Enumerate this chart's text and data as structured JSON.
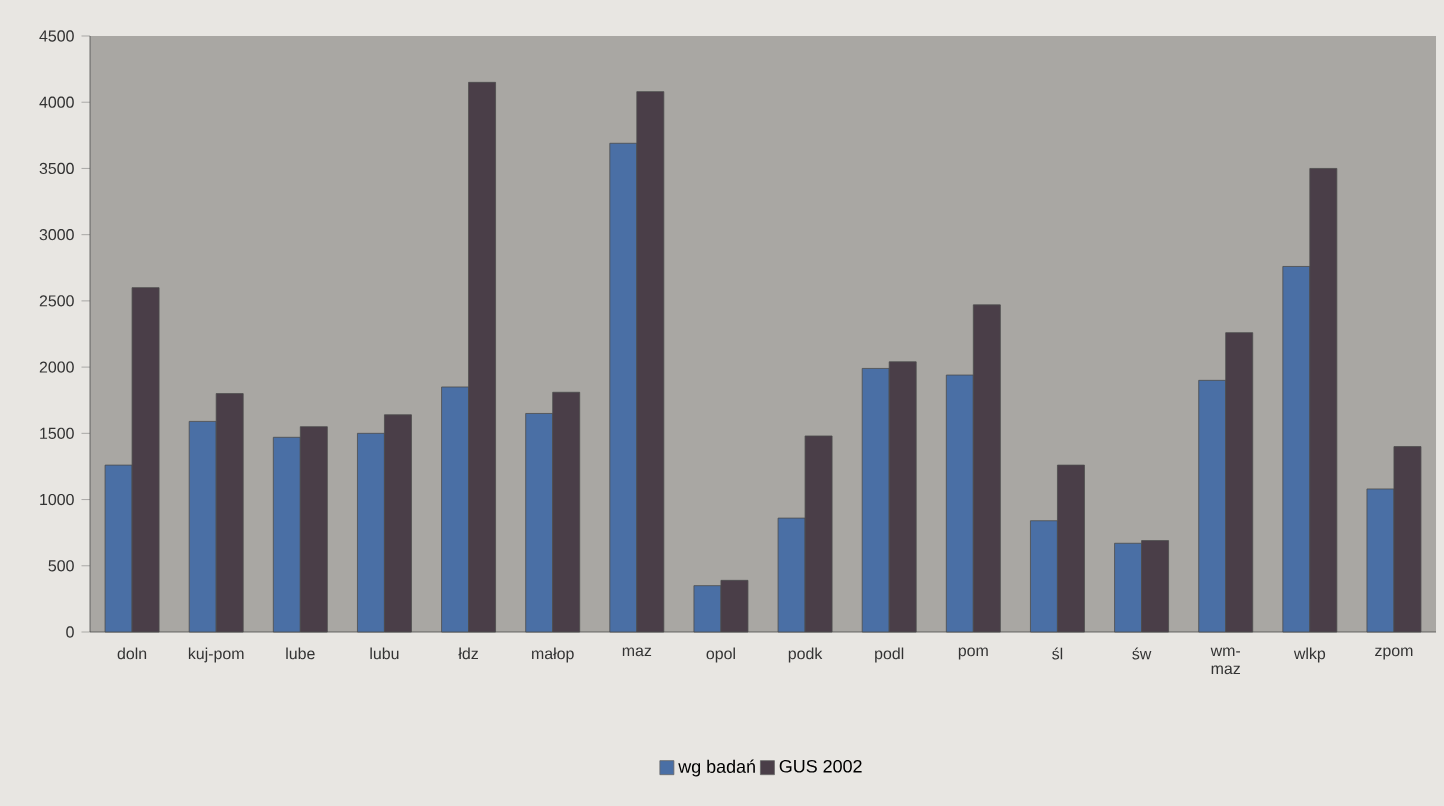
{
  "chart_data": {
    "type": "bar",
    "categories": [
      "doln",
      "kuj-pom",
      "lube",
      "lubu",
      "łdz",
      "małop",
      "maz",
      "opol",
      "podk",
      "podl",
      "pom",
      "śl",
      "św",
      "wm-maz",
      "wlkp",
      "zpom"
    ],
    "series": [
      {
        "name": "wg badań",
        "color": "#4a6fa5",
        "values": [
          1260,
          1590,
          1470,
          1500,
          1850,
          1650,
          3690,
          350,
          860,
          1990,
          1940,
          840,
          670,
          1900,
          2760,
          1080
        ]
      },
      {
        "name": "GUS 2002",
        "color": "#4a3e48",
        "values": [
          2600,
          1800,
          1550,
          1640,
          4150,
          1810,
          4080,
          390,
          1480,
          2040,
          2470,
          1260,
          690,
          2260,
          3500,
          1400
        ]
      }
    ],
    "ylim": [
      0,
      4500
    ],
    "yticks": [
      0,
      500,
      1000,
      1500,
      2000,
      2500,
      3000,
      3500,
      4000,
      4500
    ],
    "grid": false,
    "legend": "bottom"
  }
}
